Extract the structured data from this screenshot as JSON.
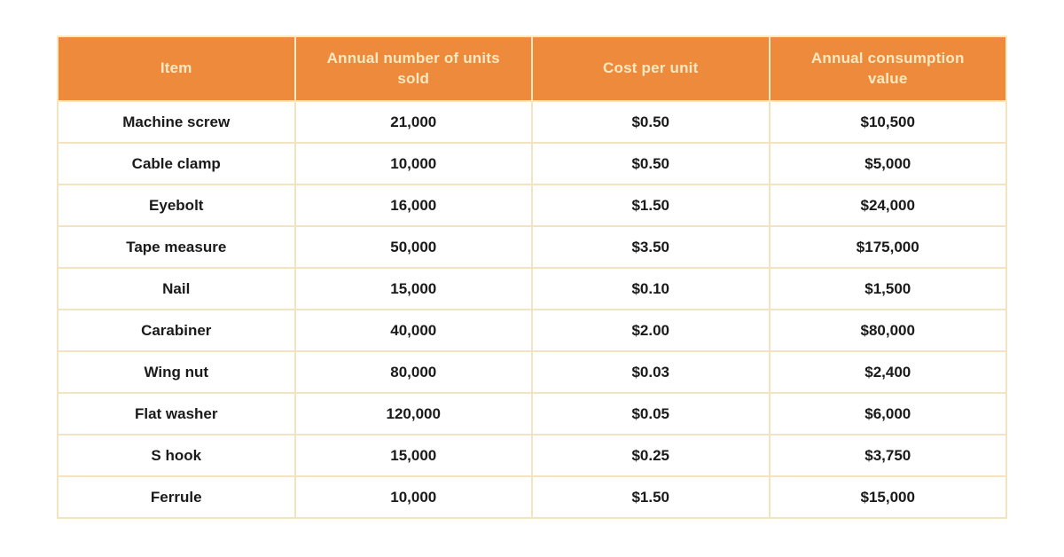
{
  "theme": {
    "header_bg": "#EE8A3C",
    "header_text": "#F8E9C2",
    "border": "#F2E4C1",
    "cell_bg": "#FFFFFF",
    "cell_text": "#1A1A1A",
    "page_bg": "#FFFFFF"
  },
  "table": {
    "columns": [
      "Item",
      "Annual number of units sold",
      "Cost per unit",
      "Annual consumption value"
    ],
    "rows": [
      [
        "Machine screw",
        "21,000",
        "$0.50",
        "$10,500"
      ],
      [
        "Cable clamp",
        "10,000",
        "$0.50",
        "$5,000"
      ],
      [
        "Eyebolt",
        "16,000",
        "$1.50",
        "$24,000"
      ],
      [
        "Tape measure",
        "50,000",
        "$3.50",
        "$175,000"
      ],
      [
        "Nail",
        "15,000",
        "$0.10",
        "$1,500"
      ],
      [
        "Carabiner",
        "40,000",
        "$2.00",
        "$80,000"
      ],
      [
        "Wing nut",
        "80,000",
        "$0.03",
        "$2,400"
      ],
      [
        "Flat washer",
        "120,000",
        "$0.05",
        "$6,000"
      ],
      [
        "S hook",
        "15,000",
        "$0.25",
        "$3,750"
      ],
      [
        "Ferrule",
        "10,000",
        "$1.50",
        "$15,000"
      ]
    ]
  },
  "chart_data": {
    "type": "table",
    "title": "",
    "columns": [
      "Item",
      "Annual number of units sold",
      "Cost per unit",
      "Annual consumption value"
    ],
    "rows": [
      {
        "item": "Machine screw",
        "annual_units_sold": 21000,
        "cost_per_unit": 0.5,
        "annual_consumption_value": 10500
      },
      {
        "item": "Cable clamp",
        "annual_units_sold": 10000,
        "cost_per_unit": 0.5,
        "annual_consumption_value": 5000
      },
      {
        "item": "Eyebolt",
        "annual_units_sold": 16000,
        "cost_per_unit": 1.5,
        "annual_consumption_value": 24000
      },
      {
        "item": "Tape measure",
        "annual_units_sold": 50000,
        "cost_per_unit": 3.5,
        "annual_consumption_value": 175000
      },
      {
        "item": "Nail",
        "annual_units_sold": 15000,
        "cost_per_unit": 0.1,
        "annual_consumption_value": 1500
      },
      {
        "item": "Carabiner",
        "annual_units_sold": 40000,
        "cost_per_unit": 2.0,
        "annual_consumption_value": 80000
      },
      {
        "item": "Wing nut",
        "annual_units_sold": 80000,
        "cost_per_unit": 0.03,
        "annual_consumption_value": 2400
      },
      {
        "item": "Flat washer",
        "annual_units_sold": 120000,
        "cost_per_unit": 0.05,
        "annual_consumption_value": 6000
      },
      {
        "item": "S hook",
        "annual_units_sold": 15000,
        "cost_per_unit": 0.25,
        "annual_consumption_value": 3750
      },
      {
        "item": "Ferrule",
        "annual_units_sold": 10000,
        "cost_per_unit": 1.5,
        "annual_consumption_value": 15000
      }
    ]
  }
}
